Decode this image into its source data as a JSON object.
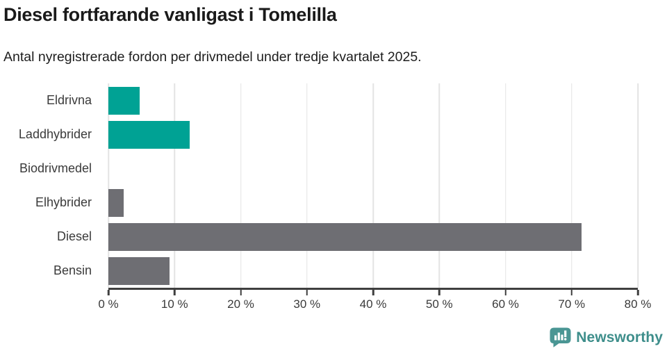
{
  "header": {
    "title": "Diesel fortfarande vanligast i Tomelilla",
    "subtitle": "Antal nyregistrerade fordon per drivmedel under tredje kvartalet 2025."
  },
  "chart_data": {
    "type": "bar",
    "orientation": "horizontal",
    "title": "Diesel fortfarande vanligast i Tomelilla",
    "subtitle": "Antal nyregistrerade fordon per drivmedel under tredje kvartalet 2025.",
    "categories": [
      "Eldrivna",
      "Laddhybrider",
      "Biodrivmedel",
      "Elhybrider",
      "Diesel",
      "Bensin"
    ],
    "values": [
      4.7,
      12.3,
      0,
      2.3,
      71.5,
      9.2
    ],
    "unit": "%",
    "xlabel": "",
    "ylabel": "",
    "xlim": [
      0,
      80
    ],
    "x_ticks": [
      "0 %",
      "10 %",
      "20 %",
      "30 %",
      "40 %",
      "50 %",
      "60 %",
      "70 %",
      "80 %"
    ],
    "x_tick_values": [
      0,
      10,
      20,
      30,
      40,
      50,
      60,
      70,
      80
    ],
    "grid": true,
    "legend": "none",
    "bar_colors": [
      "#00a294",
      "#00a294",
      "#6e6e73",
      "#6e6e73",
      "#6e6e73",
      "#6e6e73"
    ],
    "colors": {
      "teal": "#00a294",
      "gray": "#6e6e73",
      "gridline": "#e3e3e3",
      "axis": "#3f3f3f",
      "label_text": "#3a3a3a"
    }
  },
  "footer": {
    "brand": "Newsworthy",
    "brand_color": "#3e8e8b",
    "icon": "newsworthy-bar-chart-bubble-icon",
    "icon_color": "#4a9694"
  }
}
